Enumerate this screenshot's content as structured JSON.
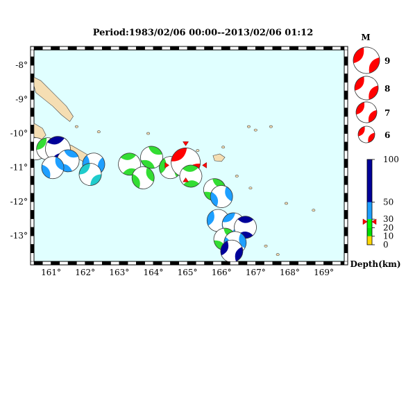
{
  "title": "Period:1983/02/06 00:00--2013/02/06 01:12",
  "map": {
    "lon_range": [
      160.5,
      169.6
    ],
    "lat_range": [
      -13.75,
      -7.55
    ],
    "lon_ticks": [
      "161°",
      "162°",
      "163°",
      "164°",
      "165°",
      "166°",
      "167°",
      "168°",
      "169°"
    ],
    "lat_ticks": [
      "-8°",
      "-9°",
      "-10°",
      "-11°",
      "-12°",
      "-13°"
    ],
    "ocean_color": "#e0ffff",
    "land_color": "#f5deb3"
  },
  "legend": {
    "magnitude_title": "M",
    "magnitudes": [
      "9",
      "8",
      "7",
      "6"
    ],
    "mechanism_color": "#ff0000"
  },
  "depth_scale": {
    "ticks": [
      "100",
      "50",
      "30",
      "20",
      "10",
      "0"
    ],
    "label": "Depth(km)",
    "colors": {
      "shallow": "#ffd700",
      "mid10": "#00dd00",
      "mid20": "#00ff00",
      "mid30": "#1e9fff",
      "deep": "#000099"
    },
    "marker_depth": 27
  },
  "events": [
    {
      "lon": 160.55,
      "lat": -10.45,
      "color": "#1e9fff",
      "size": "small"
    },
    {
      "lon": 160.9,
      "lat": -10.45,
      "color": "#33dd33",
      "size": "small"
    },
    {
      "lon": 161.2,
      "lat": -10.45,
      "color": "#000099",
      "size": "medium"
    },
    {
      "lon": 161.5,
      "lat": -10.8,
      "color": "#1e9fff",
      "size": "small"
    },
    {
      "lon": 161.05,
      "lat": -11.0,
      "color": "#1e9fff",
      "size": "small"
    },
    {
      "lon": 162.25,
      "lat": -10.9,
      "color": "#1e9fff",
      "size": "small"
    },
    {
      "lon": 162.15,
      "lat": -11.2,
      "color": "#20cccc",
      "size": "small"
    },
    {
      "lon": 163.3,
      "lat": -10.9,
      "color": "#33dd33",
      "size": "small"
    },
    {
      "lon": 163.95,
      "lat": -10.7,
      "color": "#33dd33",
      "size": "small"
    },
    {
      "lon": 163.7,
      "lat": -11.3,
      "color": "#33dd33",
      "size": "small"
    },
    {
      "lon": 164.5,
      "lat": -11.0,
      "color": "#33dd33",
      "size": "small"
    },
    {
      "lon": 164.95,
      "lat": -10.85,
      "color": "#ff0000",
      "size": "large"
    },
    {
      "lon": 165.1,
      "lat": -11.25,
      "color": "#33dd33",
      "size": "small"
    },
    {
      "lon": 165.8,
      "lat": -11.65,
      "color": "#33dd33",
      "size": "small"
    },
    {
      "lon": 166.0,
      "lat": -11.85,
      "color": "#1e9fff",
      "size": "small"
    },
    {
      "lon": 165.9,
      "lat": -12.55,
      "color": "#1e9fff",
      "size": "small"
    },
    {
      "lon": 166.35,
      "lat": -12.65,
      "color": "#1e9fff",
      "size": "small"
    },
    {
      "lon": 166.7,
      "lat": -12.75,
      "color": "#000099",
      "size": "small"
    },
    {
      "lon": 166.1,
      "lat": -13.1,
      "color": "#33dd33",
      "size": "small"
    },
    {
      "lon": 166.4,
      "lat": -13.2,
      "color": "#1e9fff",
      "size": "small"
    },
    {
      "lon": 166.3,
      "lat": -13.45,
      "color": "#000099",
      "size": "small"
    }
  ]
}
